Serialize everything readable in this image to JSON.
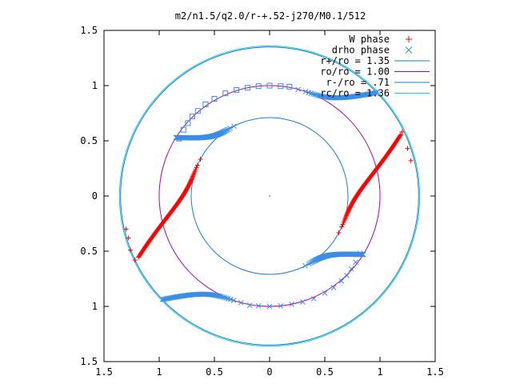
{
  "chart_data": {
    "type": "scatter",
    "title": "m2/n1.5/q2.0/r-+.52-j270/M0.1/512",
    "xlabel": "",
    "ylabel": "",
    "xlim": [
      -1.5,
      1.5
    ],
    "ylim": [
      -1.5,
      1.5
    ],
    "x_ticks": [
      -1.5,
      -1,
      -0.5,
      0,
      0.5,
      1,
      1.5
    ],
    "y_ticks": [
      -1.5,
      -1,
      -0.5,
      0,
      0.5,
      1,
      1.5
    ],
    "x_tick_labels": [
      "1.5",
      "1",
      "0.5",
      "0",
      "0.5",
      "1",
      "1.5"
    ],
    "y_tick_labels": [
      "1.5",
      "1",
      "0.5",
      "0",
      "0.5",
      "1",
      "1.5"
    ],
    "grid": false,
    "legend_position": "top-right",
    "series": [
      {
        "name": "W phase",
        "marker": "plus",
        "color": "#ff0000",
        "curves": [
          {
            "r_start": 0.71,
            "theta_start_deg": 152,
            "r_end": 1.31,
            "theta_end_deg": 205,
            "points": 120
          },
          {
            "r_start": 0.71,
            "theta_start_deg": -28,
            "r_end": 1.31,
            "theta_end_deg": 25,
            "points": 120
          }
        ],
        "scattered_points": [
          [
            1.2,
            0.58
          ],
          [
            1.25,
            0.43
          ],
          [
            1.28,
            0.32
          ],
          [
            -1.26,
            -0.49
          ],
          [
            -1.28,
            -0.38
          ],
          [
            -1.3,
            -0.3
          ],
          [
            -1.22,
            -0.58
          ]
        ]
      },
      {
        "name": "drho phase",
        "marker": "x",
        "color": "#3a8ee6",
        "curves": [
          {
            "r_start": 0.71,
            "theta_start_deg": 117,
            "r_end": 1.0,
            "theta_end_deg": 148,
            "points": 90
          },
          {
            "r_start": 0.71,
            "theta_start_deg": -63,
            "r_end": 1.0,
            "theta_end_deg": -32,
            "points": 90
          },
          {
            "r_start": 1.0,
            "theta_start_deg": 75,
            "r_end": 1.35,
            "theta_end_deg": 44,
            "points": 60
          },
          {
            "r_start": 1.0,
            "theta_start_deg": 255,
            "r_end": 1.35,
            "theta_end_deg": 224,
            "points": 60
          }
        ],
        "scattered_points": [
          [
            -0.82,
            0.52
          ],
          [
            -0.78,
            0.6
          ],
          [
            -0.74,
            0.66
          ],
          [
            -0.7,
            0.72
          ],
          [
            -0.65,
            0.77
          ],
          [
            -0.58,
            0.83
          ],
          [
            -0.5,
            0.88
          ],
          [
            -0.4,
            0.93
          ],
          [
            -0.3,
            0.96
          ],
          [
            -0.2,
            0.98
          ],
          [
            -0.1,
            0.995
          ],
          [
            0.0,
            1.0
          ],
          [
            0.1,
            0.995
          ],
          [
            0.18,
            0.99
          ],
          [
            0.82,
            -0.52
          ],
          [
            0.78,
            -0.6
          ],
          [
            0.74,
            -0.66
          ],
          [
            0.7,
            -0.72
          ],
          [
            0.65,
            -0.77
          ],
          [
            0.58,
            -0.83
          ],
          [
            0.5,
            -0.88
          ],
          [
            0.4,
            -0.93
          ],
          [
            0.3,
            -0.96
          ],
          [
            0.2,
            -0.98
          ],
          [
            0.1,
            -0.995
          ],
          [
            0.0,
            -1.0
          ],
          [
            -0.1,
            -0.995
          ],
          [
            -0.18,
            -0.99
          ]
        ]
      }
    ],
    "circles": [
      {
        "name": "r+/ro = 1.35",
        "r": 1.35,
        "color": "#1a7fcf"
      },
      {
        "name": "ro/ro = 1.00",
        "r": 1.0,
        "color": "#b000b0"
      },
      {
        "name": "r-/ro = .71",
        "r": 0.71,
        "color": "#1a7fcf"
      },
      {
        "name": "rc/ro = 1.36",
        "r": 1.36,
        "color": "#22c8d8"
      }
    ]
  }
}
